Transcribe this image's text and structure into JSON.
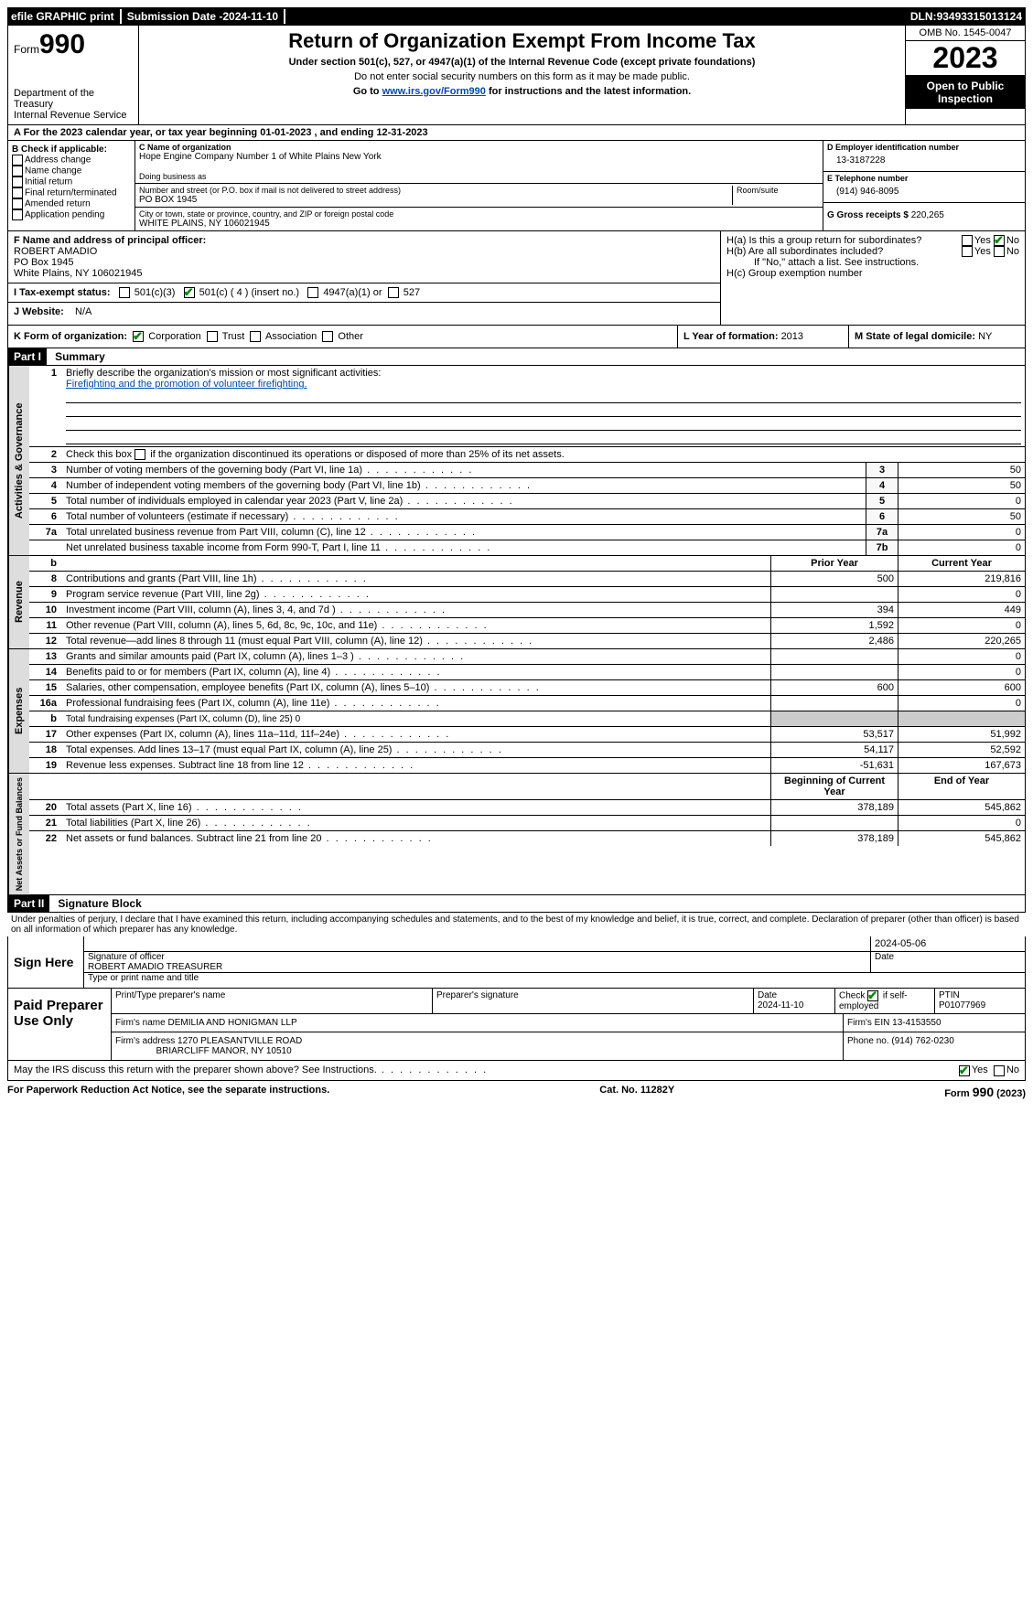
{
  "topbar": {
    "efile": "efile GRAPHIC print",
    "sub_date_lbl": "Submission Date - ",
    "sub_date": "2024-11-10",
    "dln_lbl": "DLN: ",
    "dln": "93493315013124"
  },
  "header": {
    "form_lbl": "Form",
    "form_no": "990",
    "dept": "Department of the Treasury\nInternal Revenue Service",
    "title": "Return of Organization Exempt From Income Tax",
    "sub1": "Under section 501(c), 527, or 4947(a)(1) of the Internal Revenue Code (except private foundations)",
    "sub2": "Do not enter social security numbers on this form as it may be made public.",
    "sub3a": "Go to ",
    "sub3_link": "www.irs.gov/Form990",
    "sub3b": " for instructions and the latest information.",
    "omb": "OMB No. 1545-0047",
    "year": "2023",
    "open": "Open to Public Inspection"
  },
  "rowA": {
    "text_a": "A For the 2023 calendar year, or tax year beginning ",
    "begin": "01-01-2023",
    "mid": " , and ending ",
    "end": "12-31-2023"
  },
  "colB": {
    "lbl": "B Check if applicable:",
    "opts": [
      "Address change",
      "Name change",
      "Initial return",
      "Final return/terminated",
      "Amended return",
      "Application pending"
    ]
  },
  "colC": {
    "name_lbl": "C Name of organization",
    "name": "Hope Engine Company Number 1 of White Plains New York",
    "dba_lbl": "Doing business as",
    "addr_lbl": "Number and street (or P.O. box if mail is not delivered to street address)",
    "room_lbl": "Room/suite",
    "addr": "PO BOX 1945",
    "city_lbl": "City or town, state or province, country, and ZIP or foreign postal code",
    "city": "WHITE PLAINS, NY  106021945"
  },
  "colD": {
    "ein_lbl": "D Employer identification number",
    "ein": "13-3187228",
    "tel_lbl": "E Telephone number",
    "tel": "(914) 946-8095",
    "gross_lbl": "G Gross receipts $ ",
    "gross": "220,265"
  },
  "rowF": {
    "lbl": "F  Name and address of principal officer:",
    "name": "ROBERT AMADIO",
    "addr1": "PO Box 1945",
    "addr2": "White Plains, NY  106021945"
  },
  "rowH": {
    "a": "H(a)  Is this a group return for subordinates?",
    "b": "H(b)  Are all subordinates included?",
    "note": "If \"No,\" attach a list. See instructions.",
    "c": "H(c)  Group exemption number",
    "yes": "Yes",
    "no": "No"
  },
  "rowI": {
    "lbl": "I  Tax-exempt status:",
    "o1": "501(c)(3)",
    "o2": "501(c) ( 4 ) (insert no.)",
    "o3": "4947(a)(1) or",
    "o4": "527"
  },
  "rowJ": {
    "lbl": "J  Website:",
    "val": "N/A"
  },
  "rowK": {
    "lbl": "K Form of organization:",
    "o1": "Corporation",
    "o2": "Trust",
    "o3": "Association",
    "o4": "Other"
  },
  "rowL": {
    "lbl": "L Year of formation: ",
    "val": "2013"
  },
  "rowM": {
    "lbl": "M State of legal domicile: ",
    "val": "NY"
  },
  "part1": {
    "hdr": "Part I",
    "title": "Summary",
    "l1_lbl": "Briefly describe the organization's mission or most significant activities:",
    "l1_val": "Firefighting and the promotion of volunteer firefighting.",
    "l2": "Check this box    if the organization discontinued its operations or disposed of more than 25% of its net assets.",
    "gov_label": "Activities & Governance",
    "rev_label": "Revenue",
    "exp_label": "Expenses",
    "net_label": "Net Assets or Fund Balances",
    "rows_gov": [
      {
        "n": "3",
        "t": "Number of voting members of the governing body (Part VI, line 1a)",
        "sn": "3",
        "v": "50"
      },
      {
        "n": "4",
        "t": "Number of independent voting members of the governing body (Part VI, line 1b)",
        "sn": "4",
        "v": "50"
      },
      {
        "n": "5",
        "t": "Total number of individuals employed in calendar year 2023 (Part V, line 2a)",
        "sn": "5",
        "v": "0"
      },
      {
        "n": "6",
        "t": "Total number of volunteers (estimate if necessary)",
        "sn": "6",
        "v": "50"
      },
      {
        "n": "7a",
        "t": "Total unrelated business revenue from Part VIII, column (C), line 12",
        "sn": "7a",
        "v": "0"
      },
      {
        "n": "",
        "t": "Net unrelated business taxable income from Form 990-T, Part I, line 11",
        "sn": "7b",
        "v": "0"
      }
    ],
    "prior_lbl": "Prior Year",
    "curr_lbl": "Current Year",
    "rows_rev": [
      {
        "n": "8",
        "t": "Contributions and grants (Part VIII, line 1h)",
        "p": "500",
        "c": "219,816"
      },
      {
        "n": "9",
        "t": "Program service revenue (Part VIII, line 2g)",
        "p": "",
        "c": "0"
      },
      {
        "n": "10",
        "t": "Investment income (Part VIII, column (A), lines 3, 4, and 7d )",
        "p": "394",
        "c": "449"
      },
      {
        "n": "11",
        "t": "Other revenue (Part VIII, column (A), lines 5, 6d, 8c, 9c, 10c, and 11e)",
        "p": "1,592",
        "c": "0"
      },
      {
        "n": "12",
        "t": "Total revenue—add lines 8 through 11 (must equal Part VIII, column (A), line 12)",
        "p": "2,486",
        "c": "220,265"
      }
    ],
    "rows_exp": [
      {
        "n": "13",
        "t": "Grants and similar amounts paid (Part IX, column (A), lines 1–3 )",
        "p": "",
        "c": "0"
      },
      {
        "n": "14",
        "t": "Benefits paid to or for members (Part IX, column (A), line 4)",
        "p": "",
        "c": "0"
      },
      {
        "n": "15",
        "t": "Salaries, other compensation, employee benefits (Part IX, column (A), lines 5–10)",
        "p": "600",
        "c": "600"
      },
      {
        "n": "16a",
        "t": "Professional fundraising fees (Part IX, column (A), line 11e)",
        "p": "",
        "c": "0"
      },
      {
        "n": "b",
        "t": "Total fundraising expenses (Part IX, column (D), line 25) 0",
        "p": "shade",
        "c": "shade"
      },
      {
        "n": "17",
        "t": "Other expenses (Part IX, column (A), lines 11a–11d, 11f–24e)",
        "p": "53,517",
        "c": "51,992"
      },
      {
        "n": "18",
        "t": "Total expenses. Add lines 13–17 (must equal Part IX, column (A), line 25)",
        "p": "54,117",
        "c": "52,592"
      },
      {
        "n": "19",
        "t": "Revenue less expenses. Subtract line 18 from line 12",
        "p": "-51,631",
        "c": "167,673"
      }
    ],
    "beg_lbl": "Beginning of Current Year",
    "end_lbl": "End of Year",
    "rows_net": [
      {
        "n": "20",
        "t": "Total assets (Part X, line 16)",
        "p": "378,189",
        "c": "545,862"
      },
      {
        "n": "21",
        "t": "Total liabilities (Part X, line 26)",
        "p": "",
        "c": "0"
      },
      {
        "n": "22",
        "t": "Net assets or fund balances. Subtract line 21 from line 20",
        "p": "378,189",
        "c": "545,862"
      }
    ]
  },
  "part2": {
    "hdr": "Part II",
    "title": "Signature Block",
    "decl": "Under penalties of perjury, I declare that I have examined this return, including accompanying schedules and statements, and to the best of my knowledge and belief, it is true, correct, and complete. Declaration of preparer (other than officer) is based on all information of which preparer has any knowledge.",
    "sign_lbl": "Sign Here",
    "sig_date": "2024-05-06",
    "sig_officer_lbl": "Signature of officer",
    "sig_date_lbl": "Date",
    "officer": "ROBERT AMADIO TREASURER",
    "type_name_lbl": "Type or print name and title",
    "paid_lbl": "Paid Preparer Use Only",
    "prep_name_lbl": "Print/Type preparer's name",
    "prep_sig_lbl": "Preparer's signature",
    "prep_date_lbl": "Date",
    "prep_date": "2024-11-10",
    "self_emp": "Check       if self-employed",
    "ptin_lbl": "PTIN",
    "ptin": "P01077969",
    "firm_name_lbl": "Firm's name   ",
    "firm_name": "DEMILIA AND HONIGMAN LLP",
    "firm_ein_lbl": "Firm's EIN  ",
    "firm_ein": "13-4153550",
    "firm_addr_lbl": "Firm's address ",
    "firm_addr1": "1270 PLEASANTVILLE ROAD",
    "firm_addr2": "BRIARCLIFF MANOR, NY  10510",
    "phone_lbl": "Phone no. ",
    "phone": "(914) 762-0230",
    "discuss": "May the IRS discuss this return with the preparer shown above? See Instructions.",
    "yes": "Yes",
    "no": "No"
  },
  "footer": {
    "pra": "For Paperwork Reduction Act Notice, see the separate instructions.",
    "cat": "Cat. No. 11282Y",
    "form": "Form 990 (2023)"
  }
}
